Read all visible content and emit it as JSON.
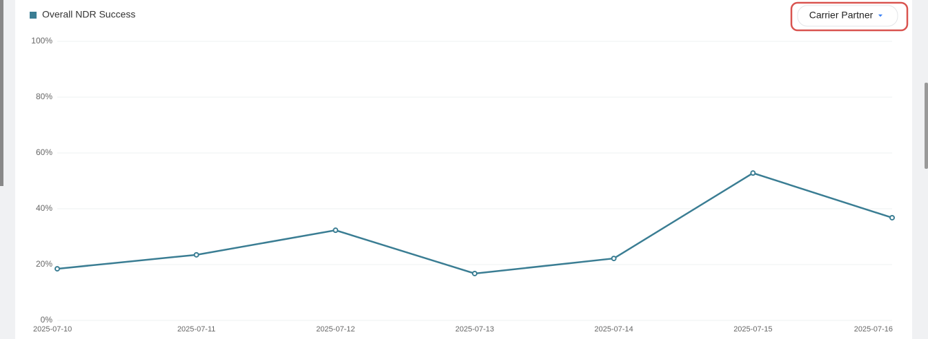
{
  "chart_data": {
    "type": "line",
    "categories": [
      "2025-07-10",
      "2025-07-11",
      "2025-07-12",
      "2025-07-13",
      "2025-07-14",
      "2025-07-15",
      "2025-07-16"
    ],
    "series": [
      {
        "name": "Overall NDR Success",
        "color": "#3a7d93",
        "values": [
          18.5,
          23.5,
          32.3,
          16.8,
          22.2,
          52.8,
          36.8
        ]
      }
    ],
    "ylim": [
      0,
      100
    ],
    "yticks": [
      {
        "value": 0,
        "label": "0%"
      },
      {
        "value": 20,
        "label": "20%"
      },
      {
        "value": 40,
        "label": "40%"
      },
      {
        "value": 60,
        "label": "60%"
      },
      {
        "value": 80,
        "label": "80%"
      },
      {
        "value": 100,
        "label": "100%"
      }
    ],
    "grid": true
  },
  "controls": {
    "dropdown": "Carrier Partner"
  }
}
